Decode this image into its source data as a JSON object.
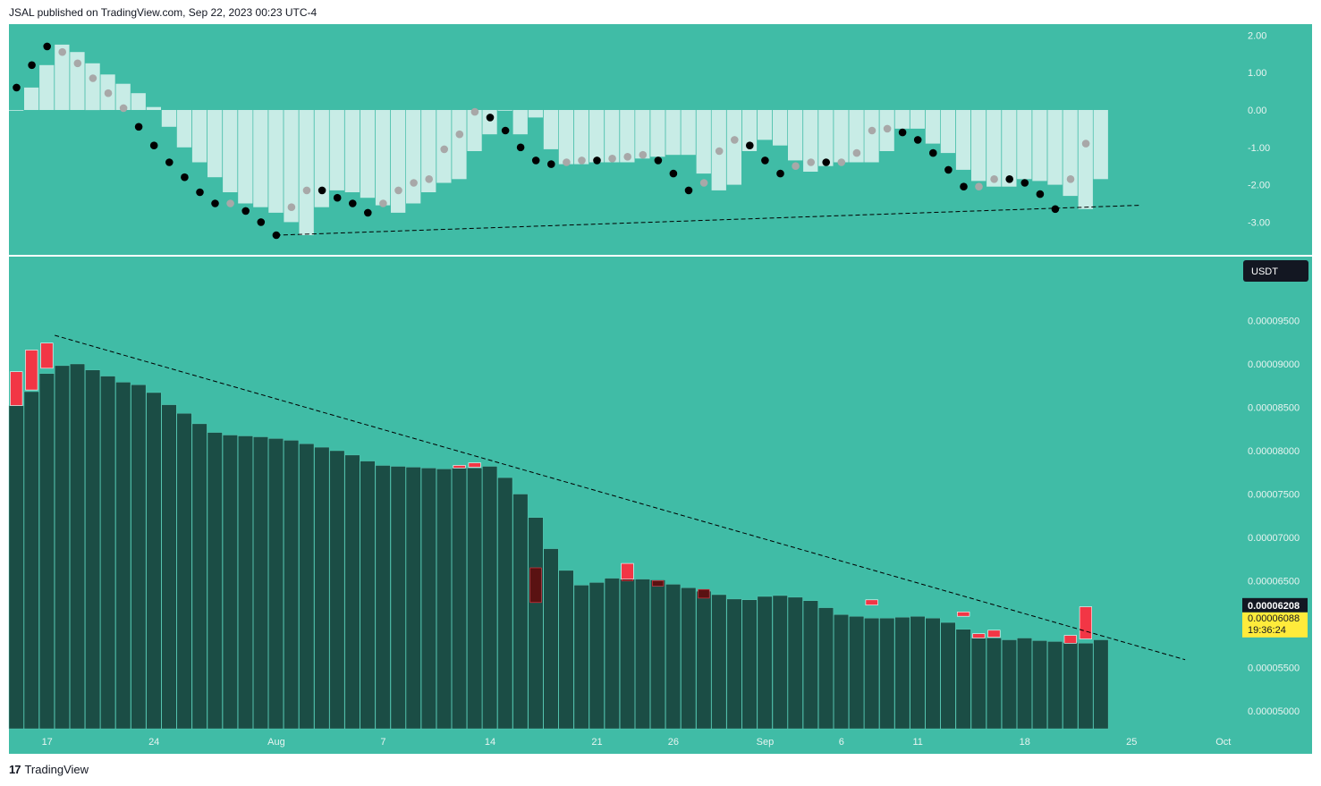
{
  "header": {
    "published_text": "JSAL published on TradingView.com, Sep 22, 2023 00:23 UTC-4"
  },
  "footer": {
    "logo_text": "TradingView",
    "logo_glyph": "17"
  },
  "colors": {
    "background": "#40bca6",
    "histogram": "#c8ece6",
    "dot_dark": "#000000",
    "dot_light": "#a8a8a8",
    "candle_body": "#1b4d45",
    "candle_red": "#f23645",
    "current_price_bg": "#131722",
    "countdown_bg": "#ffeb3b"
  },
  "oscillator": {
    "axis_labels": [
      "2.00",
      "1.00",
      "0.00",
      "-1.00",
      "-2.00",
      "-3.00"
    ],
    "axis_values": [
      2,
      1,
      0,
      -1,
      -2,
      -3
    ],
    "histogram": [
      0.0,
      0.6,
      1.2,
      1.75,
      1.55,
      1.25,
      0.95,
      0.7,
      0.45,
      0.08,
      -0.45,
      -1.0,
      -1.4,
      -1.8,
      -2.2,
      -2.5,
      -2.6,
      -2.75,
      -3.0,
      -3.35,
      -2.6,
      -2.15,
      -2.2,
      -2.35,
      -2.55,
      -2.75,
      -2.5,
      -2.2,
      -1.95,
      -1.85,
      -1.1,
      -0.65,
      -0.0,
      -0.65,
      -0.2,
      -1.05,
      -1.45,
      -1.45,
      -1.4,
      -1.4,
      -1.4,
      -1.3,
      -1.25,
      -1.2,
      -1.2,
      -1.7,
      -2.15,
      -2.0,
      -1.1,
      -0.8,
      -0.95,
      -1.35,
      -1.65,
      -1.5,
      -1.4,
      -1.4,
      -1.4,
      -1.1,
      -0.5,
      -0.5,
      -0.9,
      -1.15,
      -1.6,
      -1.9,
      -2.05,
      -2.05,
      -1.85,
      -1.9,
      -2.0,
      -2.3,
      -2.65,
      -1.85
    ],
    "dots": [
      [
        0,
        0.6,
        "dark"
      ],
      [
        1,
        1.2,
        "dark"
      ],
      [
        2,
        1.7,
        "dark"
      ],
      [
        3,
        1.55,
        "light"
      ],
      [
        4,
        1.25,
        "light"
      ],
      [
        5,
        0.85,
        "light"
      ],
      [
        6,
        0.45,
        "light"
      ],
      [
        7,
        0.05,
        "light"
      ],
      [
        8,
        -0.45,
        "dark"
      ],
      [
        9,
        -0.95,
        "dark"
      ],
      [
        10,
        -1.4,
        "dark"
      ],
      [
        11,
        -1.8,
        "dark"
      ],
      [
        12,
        -2.2,
        "dark"
      ],
      [
        13,
        -2.5,
        "dark"
      ],
      [
        14,
        -2.5,
        "light"
      ],
      [
        15,
        -2.7,
        "dark"
      ],
      [
        16,
        -3.0,
        "dark"
      ],
      [
        17,
        -3.35,
        "dark"
      ],
      [
        18,
        -2.6,
        "light"
      ],
      [
        19,
        -2.15,
        "light"
      ],
      [
        20,
        -2.15,
        "dark"
      ],
      [
        21,
        -2.35,
        "dark"
      ],
      [
        22,
        -2.5,
        "dark"
      ],
      [
        23,
        -2.75,
        "dark"
      ],
      [
        24,
        -2.5,
        "light"
      ],
      [
        25,
        -2.15,
        "light"
      ],
      [
        26,
        -1.95,
        "light"
      ],
      [
        27,
        -1.85,
        "light"
      ],
      [
        28,
        -1.05,
        "light"
      ],
      [
        29,
        -0.65,
        "light"
      ],
      [
        30,
        -0.05,
        "light"
      ],
      [
        31,
        -0.2,
        "dark"
      ],
      [
        32,
        -0.55,
        "dark"
      ],
      [
        33,
        -1.0,
        "dark"
      ],
      [
        34,
        -1.35,
        "dark"
      ],
      [
        35,
        -1.45,
        "dark"
      ],
      [
        36,
        -1.4,
        "light"
      ],
      [
        37,
        -1.35,
        "light"
      ],
      [
        38,
        -1.35,
        "dark"
      ],
      [
        39,
        -1.3,
        "light"
      ],
      [
        40,
        -1.25,
        "light"
      ],
      [
        41,
        -1.2,
        "light"
      ],
      [
        42,
        -1.35,
        "dark"
      ],
      [
        43,
        -1.7,
        "dark"
      ],
      [
        44,
        -2.15,
        "dark"
      ],
      [
        45,
        -1.95,
        "light"
      ],
      [
        46,
        -1.1,
        "light"
      ],
      [
        47,
        -0.8,
        "light"
      ],
      [
        48,
        -0.95,
        "dark"
      ],
      [
        49,
        -1.35,
        "dark"
      ],
      [
        50,
        -1.7,
        "dark"
      ],
      [
        51,
        -1.5,
        "light"
      ],
      [
        52,
        -1.4,
        "light"
      ],
      [
        53,
        -1.4,
        "dark"
      ],
      [
        54,
        -1.4,
        "light"
      ],
      [
        55,
        -1.15,
        "light"
      ],
      [
        56,
        -0.55,
        "light"
      ],
      [
        57,
        -0.5,
        "light"
      ],
      [
        58,
        -0.6,
        "dark"
      ],
      [
        59,
        -0.8,
        "dark"
      ],
      [
        60,
        -1.15,
        "dark"
      ],
      [
        61,
        -1.6,
        "dark"
      ],
      [
        62,
        -2.05,
        "dark"
      ],
      [
        63,
        -2.05,
        "light"
      ],
      [
        64,
        -1.85,
        "light"
      ],
      [
        65,
        -1.85,
        "dark"
      ],
      [
        66,
        -1.95,
        "dark"
      ],
      [
        67,
        -2.25,
        "dark"
      ],
      [
        68,
        -2.65,
        "dark"
      ],
      [
        69,
        -1.85,
        "light"
      ],
      [
        70,
        -0.9,
        "light"
      ]
    ],
    "trendline": {
      "from": [
        17,
        -3.35
      ],
      "to": [
        73.5,
        -2.55
      ]
    }
  },
  "price_pane": {
    "currency_label": "USDT",
    "axis_labels": [
      "0.00009500",
      "0.00009000",
      "0.00008500",
      "0.00008000",
      "0.00007500",
      "0.00007000",
      "0.00006500",
      "0.00005500",
      "0.00005000"
    ],
    "axis_values": [
      9.5e-05,
      9e-05,
      8.5e-05,
      8e-05,
      7.5e-05,
      7e-05,
      6.5e-05,
      5.5e-05,
      5e-05
    ],
    "current_price_label": "0.00006208",
    "current_price_value": 6.208e-05,
    "secondary_price_label": "0.00006088",
    "secondary_price_value": 6.088e-05,
    "countdown_label": "19:36:24",
    "closes": [
      8.52e-05,
      8.68e-05,
      8.89e-05,
      8.98e-05,
      9e-05,
      8.93e-05,
      8.86e-05,
      8.79e-05,
      8.76e-05,
      8.67e-05,
      8.53e-05,
      8.43e-05,
      8.31e-05,
      8.21e-05,
      8.18e-05,
      8.17e-05,
      8.16e-05,
      8.14e-05,
      8.12e-05,
      8.08e-05,
      8.04e-05,
      8e-05,
      7.95e-05,
      7.88e-05,
      7.83e-05,
      7.82e-05,
      7.81e-05,
      7.8e-05,
      7.79e-05,
      7.8e-05,
      7.8e-05,
      7.82e-05,
      7.69e-05,
      7.5e-05,
      7.23e-05,
      6.87e-05,
      6.62e-05,
      6.45e-05,
      6.48e-05,
      6.53e-05,
      6.52e-05,
      6.52e-05,
      6.51e-05,
      6.46e-05,
      6.42e-05,
      6.38e-05,
      6.34e-05,
      6.29e-05,
      6.28e-05,
      6.32e-05,
      6.33e-05,
      6.31e-05,
      6.27e-05,
      6.19e-05,
      6.11e-05,
      6.09e-05,
      6.07e-05,
      6.07e-05,
      6.08e-05,
      6.09e-05,
      6.07e-05,
      6.02e-05,
      5.94e-05,
      5.84e-05,
      5.84e-05,
      5.82e-05,
      5.84e-05,
      5.81e-05,
      5.8e-05,
      5.79e-05,
      5.78e-05,
      5.82e-05
    ],
    "red_candles": [
      [
        0,
        8.91e-05,
        8.52e-05
      ],
      [
        1,
        9.16e-05,
        8.7e-05
      ],
      [
        2,
        9.24e-05,
        8.95e-05
      ],
      [
        29,
        7.83e-05,
        7.8e-05
      ],
      [
        30,
        7.86e-05,
        7.81e-05
      ],
      [
        40,
        6.7e-05,
        6.52e-05
      ],
      [
        56,
        6.28e-05,
        6.22e-05
      ],
      [
        62,
        6.14e-05,
        6.09e-05
      ],
      [
        63,
        5.89e-05,
        5.84e-05
      ],
      [
        64,
        5.93e-05,
        5.85e-05
      ],
      [
        69,
        5.87e-05,
        5.78e-05
      ],
      [
        70,
        6.2e-05,
        5.83e-05
      ]
    ],
    "wick_marks": [
      [
        34,
        6.65e-05,
        6.25e-05
      ],
      [
        40,
        6.64e-05,
        6.5e-05
      ],
      [
        42,
        6.5e-05,
        6.44e-05
      ],
      [
        45,
        6.4e-05,
        6.3e-05
      ]
    ],
    "trendline": {
      "from": [
        2.5,
        9.33e-05
      ],
      "to": [
        76.5,
        5.59e-05
      ]
    }
  },
  "x_axis": {
    "labels": [
      "17",
      "24",
      "Aug",
      "7",
      "14",
      "21",
      "26",
      "Sep",
      "6",
      "11",
      "18",
      "25",
      "Oct"
    ],
    "positions": [
      2,
      9,
      17,
      24,
      31,
      38,
      43,
      49,
      54,
      59,
      66,
      73,
      79
    ]
  }
}
